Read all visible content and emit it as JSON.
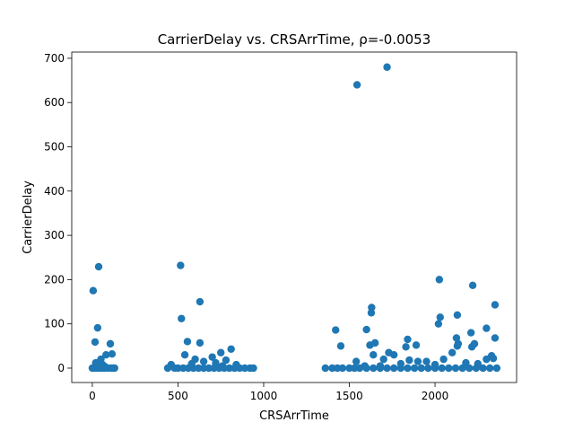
{
  "chart_data": {
    "type": "scatter",
    "title": "CarrierDelay vs. CRSArrTime, ρ=-0.0053",
    "xlabel": "CRSArrTime",
    "ylabel": "CarrierDelay",
    "color": "#1f77b4",
    "xlim": [
      -120,
      2476
    ],
    "ylim": [
      -32.5,
      714
    ],
    "xticks": [
      0,
      500,
      1000,
      1500,
      2000
    ],
    "yticks": [
      0,
      100,
      200,
      300,
      400,
      500,
      600,
      700
    ],
    "x": [
      5,
      37,
      31,
      16,
      105,
      115,
      80,
      50,
      20,
      60,
      0,
      10,
      25,
      40,
      55,
      70,
      90,
      110,
      120,
      130,
      35,
      75,
      515,
      520,
      628,
      555,
      628,
      810,
      750,
      540,
      700,
      600,
      650,
      460,
      440,
      480,
      500,
      530,
      560,
      590,
      620,
      650,
      680,
      710,
      740,
      770,
      800,
      830,
      860,
      890,
      920,
      940,
      580,
      720,
      780,
      840,
      760,
      1545,
      1720,
      1420,
      1450,
      1600,
      1630,
      1628,
      1620,
      1650,
      1700,
      1730,
      1760,
      1540,
      1590,
      1640,
      1840,
      1830,
      1890,
      2020,
      2025,
      2030,
      2130,
      2125,
      2135,
      2130,
      2210,
      2220,
      2215,
      2230,
      2300,
      2350,
      2350,
      2330,
      2340,
      2300,
      2100,
      2050,
      1950,
      1900,
      1850,
      1360,
      1400,
      1430,
      1460,
      1500,
      1530,
      1560,
      1600,
      1640,
      1680,
      1720,
      1760,
      1800,
      1840,
      1880,
      1920,
      1960,
      2000,
      2040,
      2080,
      2120,
      2160,
      2200,
      2240,
      2280,
      2320,
      2360,
      2250,
      2180,
      2000,
      1800,
      1680
    ],
    "values": [
      175,
      229,
      91,
      59,
      55,
      32,
      30,
      20,
      12,
      8,
      0,
      0,
      0,
      0,
      0,
      0,
      0,
      0,
      0,
      0,
      5,
      3,
      232,
      112,
      150,
      60,
      57,
      43,
      35,
      30,
      25,
      20,
      15,
      8,
      0,
      0,
      0,
      0,
      0,
      0,
      0,
      0,
      0,
      0,
      0,
      0,
      0,
      0,
      0,
      0,
      0,
      0,
      10,
      12,
      18,
      8,
      5,
      640,
      680,
      86,
      50,
      87,
      137,
      125,
      52,
      57,
      20,
      35,
      30,
      15,
      5,
      30,
      65,
      48,
      52,
      100,
      200,
      115,
      120,
      68,
      55,
      50,
      80,
      187,
      48,
      55,
      90,
      143,
      68,
      28,
      22,
      20,
      35,
      20,
      15,
      15,
      18,
      0,
      0,
      0,
      0,
      0,
      0,
      0,
      0,
      0,
      0,
      0,
      0,
      0,
      0,
      0,
      0,
      0,
      0,
      0,
      0,
      0,
      0,
      0,
      0,
      0,
      0,
      0,
      10,
      12,
      8,
      10,
      5
    ]
  }
}
